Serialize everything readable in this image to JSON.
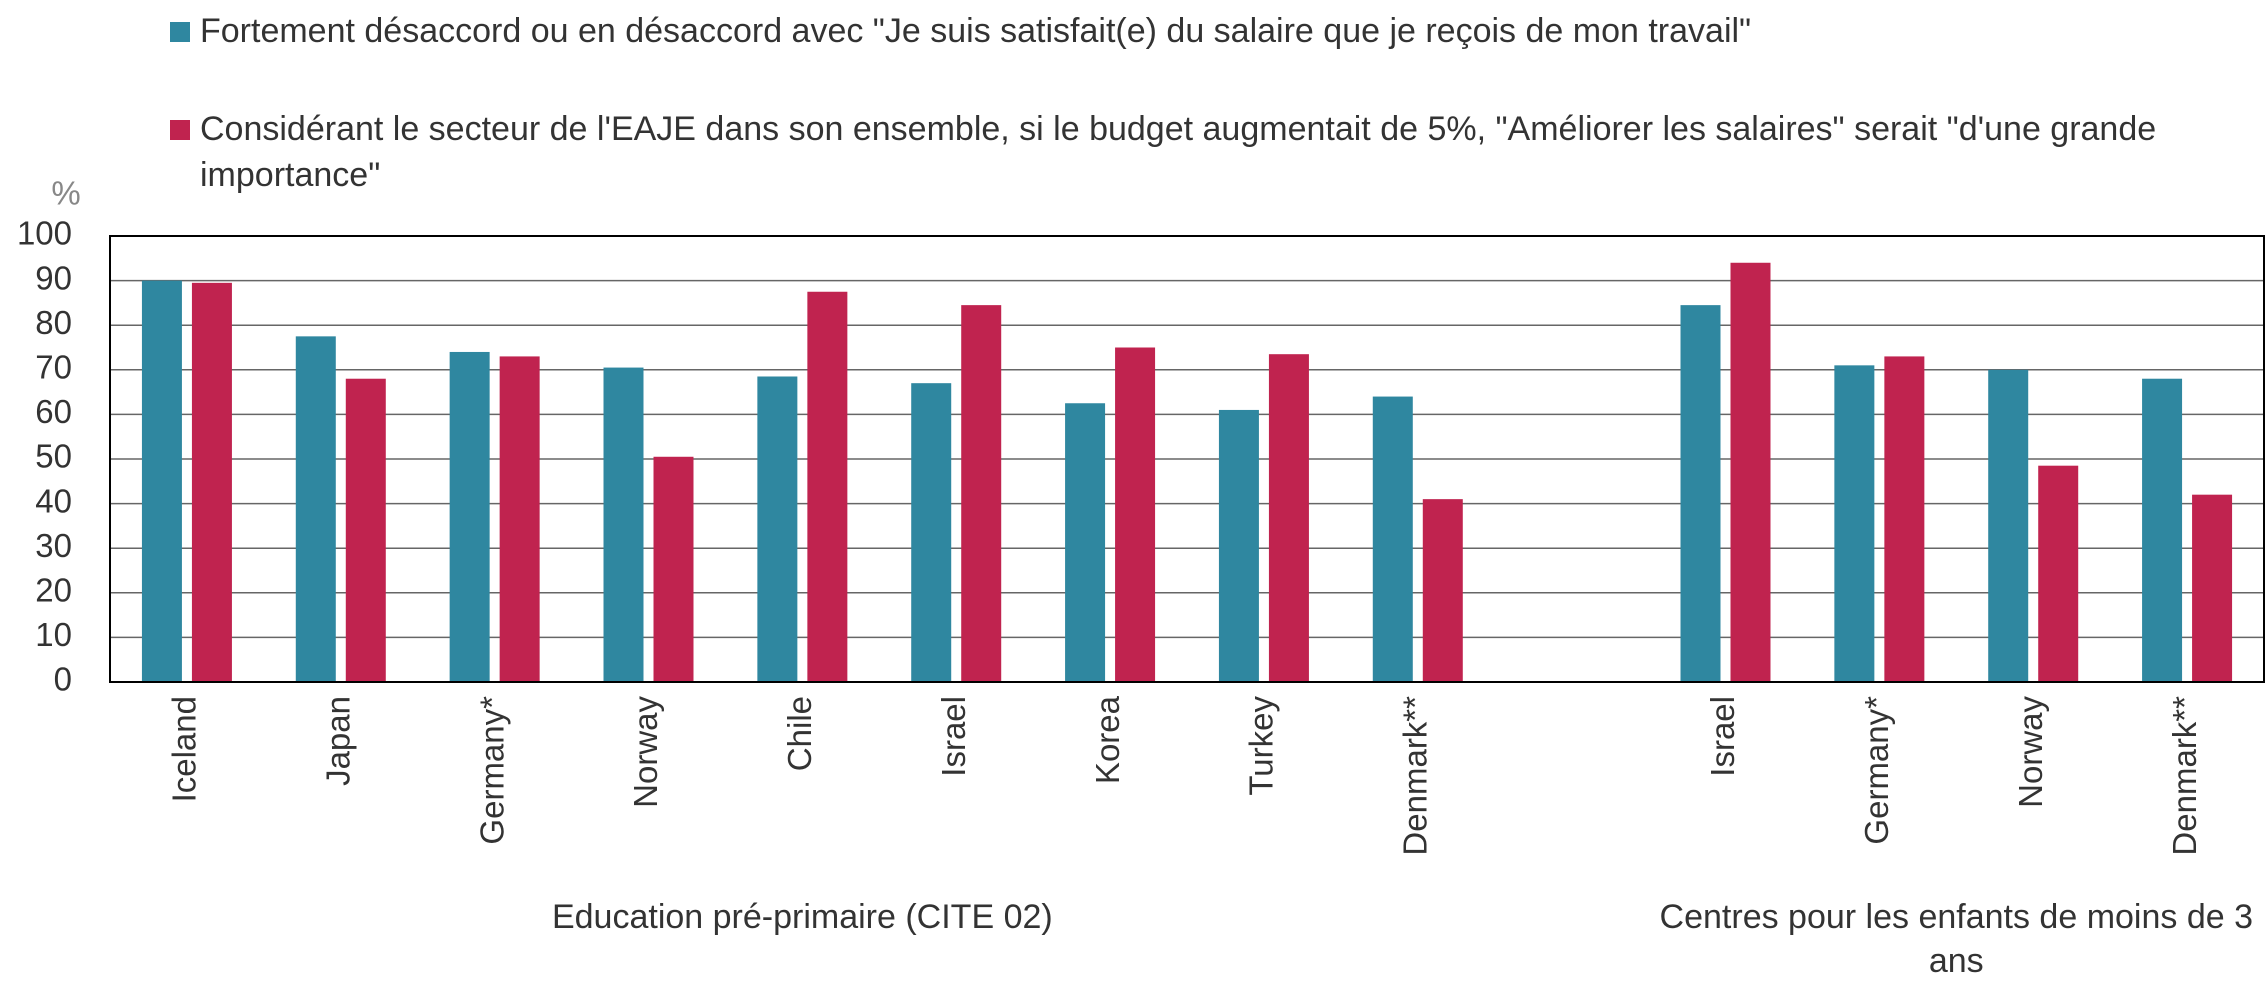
{
  "chart_data": {
    "type": "bar",
    "legend": "top",
    "y_unit": "%",
    "categories": [
      "Iceland",
      "Japan",
      "Germany*",
      "Norway",
      "Chile",
      "Israel",
      "Korea",
      "Turkey",
      "Denmark**",
      null,
      "Israel",
      "Germany*",
      "Norway",
      "Denmark**"
    ],
    "groups": [
      {
        "label": "Education pré-primaire (CITE 02)",
        "from": 0,
        "to": 8
      },
      {
        "label": "Centres pour les enfants de moins de 3 ans",
        "from": 10,
        "to": 13
      }
    ],
    "series": [
      {
        "name": "Fortement désaccord ou en désaccord avec \"Je suis satisfait(e) du salaire que je reçois de mon travail\"",
        "color": "#2f87a0",
        "values": [
          90,
          77.5,
          74,
          70.5,
          68.5,
          67,
          62.5,
          61,
          64,
          null,
          84.5,
          71,
          70,
          68
        ]
      },
      {
        "name": "Considérant le secteur de l'EAJE dans son ensemble, si le budget augmentait de 5%, \"Améliorer les salaires\" serait \"d'une grande importance\"",
        "color": "#c0234f",
        "values": [
          89.5,
          68,
          73,
          50.5,
          87.5,
          84.5,
          75,
          73.5,
          41,
          null,
          94,
          73,
          48.5,
          42
        ]
      }
    ],
    "ylim": [
      0,
      100
    ],
    "yticks": [
      0,
      10,
      20,
      30,
      40,
      50,
      60,
      70,
      80,
      90,
      100
    ],
    "grid": true
  }
}
